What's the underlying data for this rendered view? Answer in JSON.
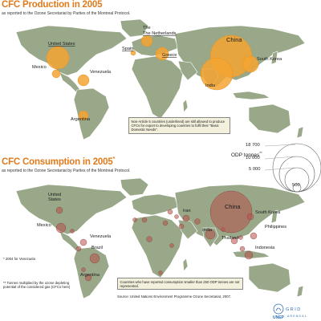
{
  "production": {
    "title": "CFC Production in 2005",
    "subtitle": "as reported to the Ozone Secretariat by Parties of the Montreal Protocol.",
    "note": "Non-Article 5 countries (underlined) are still allowed to produce CFCs for export to developing countries to fulfil their \"Basic Domestic Needs\".",
    "labels": {
      "usa": "United States",
      "netherlands": "The Netherlands",
      "spain": "Spain",
      "greece": "Greece",
      "china": "China",
      "south_korea": "South Korea",
      "mexico": "Mexico",
      "venezuela": "Venezuela",
      "india": "India",
      "argentina": "Argentina"
    }
  },
  "consumption": {
    "title": "CFC Consumption in 2005",
    "title_mark": "*",
    "subtitle": "as reported to the Ozone Secretariat by Parties of the Montreal Protocol.",
    "note": "Countries who have reported consumption smaller than 250 ODP tonnes are not represented.",
    "labels": {
      "usa": "United States",
      "mexico": "Mexico",
      "venezuela": "Venezuela",
      "brazil": "Brazil",
      "argentina": "Argentina",
      "iran": "Iran",
      "china": "China",
      "south_korea": "South Korea",
      "philippines": "Philippines",
      "india": "India",
      "thailand": "Thailand",
      "indonesia": "Indonesia"
    },
    "footnote_1": "* 2004 for Venezuela",
    "footnote_2": "** Tonnes multiplied by the ozone depleting",
    "footnote_3": "potential of the considered gas (CFCs here)",
    "source": "Source: United Nations Environment Programme Ozone Secretariat, 2007."
  },
  "legend": {
    "title": "ODP tonnes",
    "title_mark": "**",
    "values": [
      "18 700",
      "10 000",
      "5 000",
      "500"
    ]
  },
  "logos": {
    "unep": "UNEP",
    "grid": "GRID",
    "arendal": "ARENDAL"
  },
  "colors": {
    "land": "#9aa88a",
    "land_stroke": "#ffffff",
    "production_bubble": "#f4a431",
    "consumption_bubble": "#b4504a",
    "title": "#e07a1a"
  }
}
